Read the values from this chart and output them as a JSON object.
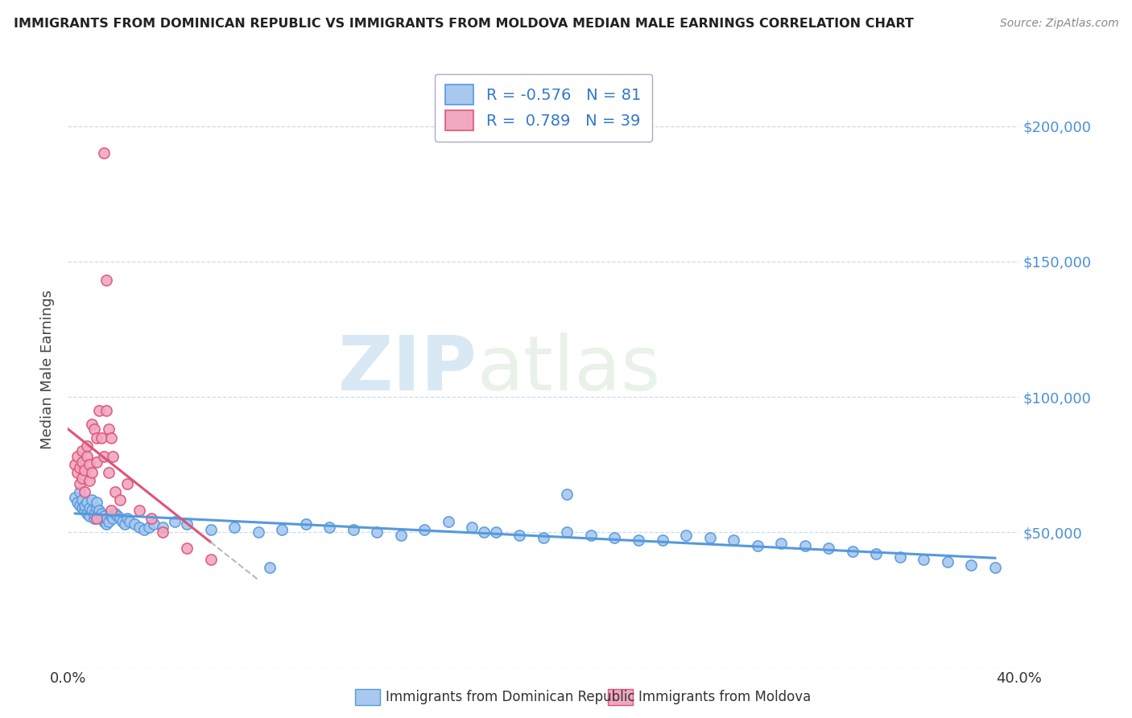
{
  "title": "IMMIGRANTS FROM DOMINICAN REPUBLIC VS IMMIGRANTS FROM MOLDOVA MEDIAN MALE EARNINGS CORRELATION CHART",
  "source": "Source: ZipAtlas.com",
  "ylabel": "Median Male Earnings",
  "legend_label1": "Immigrants from Dominican Republic",
  "legend_label2": "Immigrants from Moldova",
  "r1": "-0.576",
  "n1": "81",
  "r2": "0.789",
  "n2": "39",
  "color1": "#a8c8f0",
  "color1_dark": "#5599dd",
  "color2": "#f0a8c0",
  "color2_dark": "#dd5577",
  "background": "#ffffff",
  "watermark_zip": "ZIP",
  "watermark_atlas": "atlas",
  "yticks": [
    0,
    50000,
    100000,
    150000,
    200000
  ],
  "ytick_labels": [
    "",
    "$50,000",
    "$100,000",
    "$150,000",
    "$200,000"
  ],
  "xlim": [
    0.0,
    0.4
  ],
  "ylim": [
    0,
    220000
  ],
  "blue_scatter_x": [
    0.003,
    0.004,
    0.005,
    0.005,
    0.006,
    0.006,
    0.007,
    0.007,
    0.008,
    0.008,
    0.009,
    0.009,
    0.01,
    0.01,
    0.011,
    0.011,
    0.012,
    0.012,
    0.013,
    0.013,
    0.014,
    0.014,
    0.015,
    0.015,
    0.016,
    0.016,
    0.017,
    0.018,
    0.019,
    0.02,
    0.021,
    0.022,
    0.023,
    0.024,
    0.025,
    0.026,
    0.028,
    0.03,
    0.032,
    0.034,
    0.036,
    0.04,
    0.045,
    0.05,
    0.06,
    0.07,
    0.08,
    0.09,
    0.1,
    0.11,
    0.12,
    0.13,
    0.14,
    0.15,
    0.16,
    0.17,
    0.18,
    0.19,
    0.2,
    0.21,
    0.22,
    0.23,
    0.24,
    0.25,
    0.26,
    0.27,
    0.28,
    0.29,
    0.3,
    0.31,
    0.32,
    0.33,
    0.34,
    0.35,
    0.36,
    0.37,
    0.38,
    0.39,
    0.21,
    0.175,
    0.085
  ],
  "blue_scatter_y": [
    63000,
    61000,
    65000,
    60000,
    59000,
    62000,
    58000,
    60000,
    57000,
    61000,
    56000,
    59000,
    58000,
    62000,
    55000,
    57000,
    59000,
    61000,
    56000,
    58000,
    55000,
    57000,
    54000,
    56000,
    53000,
    55000,
    54000,
    56000,
    55000,
    57000,
    56000,
    55000,
    54000,
    53000,
    55000,
    54000,
    53000,
    52000,
    51000,
    52000,
    53000,
    52000,
    54000,
    53000,
    51000,
    52000,
    50000,
    51000,
    53000,
    52000,
    51000,
    50000,
    49000,
    51000,
    54000,
    52000,
    50000,
    49000,
    48000,
    50000,
    49000,
    48000,
    47000,
    47000,
    49000,
    48000,
    47000,
    45000,
    46000,
    45000,
    44000,
    43000,
    42000,
    41000,
    40000,
    39000,
    38000,
    37000,
    64000,
    50000,
    37000
  ],
  "pink_scatter_x": [
    0.003,
    0.004,
    0.004,
    0.005,
    0.005,
    0.006,
    0.006,
    0.006,
    0.007,
    0.007,
    0.008,
    0.008,
    0.009,
    0.009,
    0.01,
    0.01,
    0.011,
    0.012,
    0.012,
    0.013,
    0.014,
    0.015,
    0.016,
    0.016,
    0.017,
    0.017,
    0.018,
    0.019,
    0.02,
    0.022,
    0.025,
    0.03,
    0.035,
    0.04,
    0.05,
    0.06,
    0.015,
    0.012,
    0.018
  ],
  "pink_scatter_y": [
    75000,
    72000,
    78000,
    68000,
    74000,
    80000,
    70000,
    76000,
    65000,
    73000,
    78000,
    82000,
    69000,
    75000,
    90000,
    72000,
    88000,
    85000,
    76000,
    95000,
    85000,
    78000,
    143000,
    95000,
    88000,
    72000,
    85000,
    78000,
    65000,
    62000,
    68000,
    58000,
    55000,
    50000,
    44000,
    40000,
    190000,
    55000,
    58000
  ]
}
